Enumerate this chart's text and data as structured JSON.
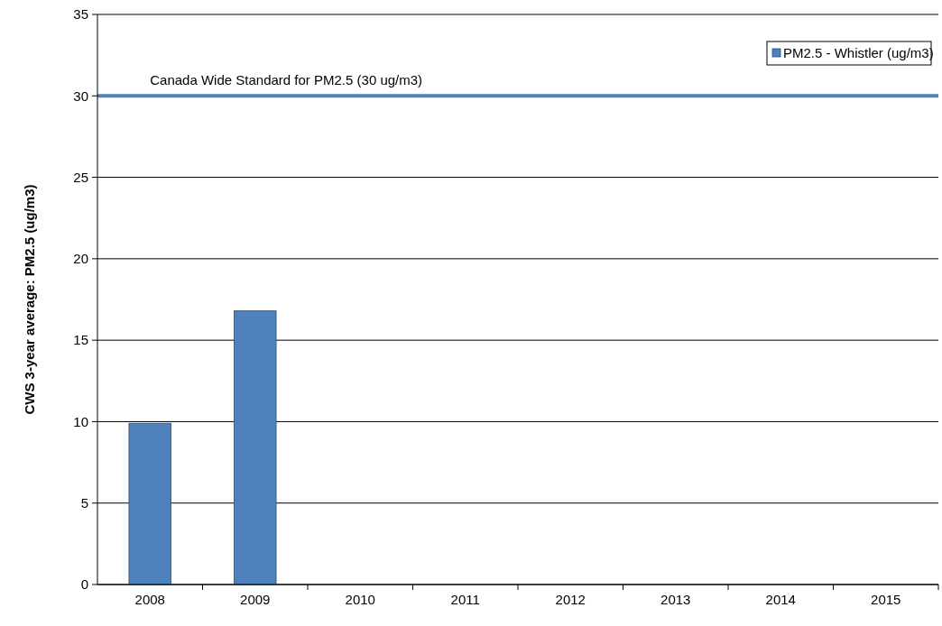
{
  "chart_data": {
    "type": "bar",
    "ylabel": "CWS 3-year average:  PM2.5 (ug/m3)",
    "categories": [
      "2008",
      "2009",
      "2010",
      "2011",
      "2012",
      "2013",
      "2014",
      "2015"
    ],
    "series": [
      {
        "name": "PM2.5 - Whistler (ug/m3)",
        "color": "#4f81bd",
        "values": [
          9.9,
          16.8,
          null,
          null,
          null,
          null,
          null,
          null
        ]
      }
    ],
    "ylim": [
      0,
      35
    ],
    "yticks": [
      0,
      5,
      10,
      15,
      20,
      25,
      30,
      35
    ],
    "grid": "y",
    "legend": "top right",
    "ref_lines": [
      {
        "axis": "y",
        "value": 30,
        "label": "Canada Wide Standard for PM2.5 (30 ug/m3)",
        "color": "#4f81bd"
      }
    ]
  }
}
